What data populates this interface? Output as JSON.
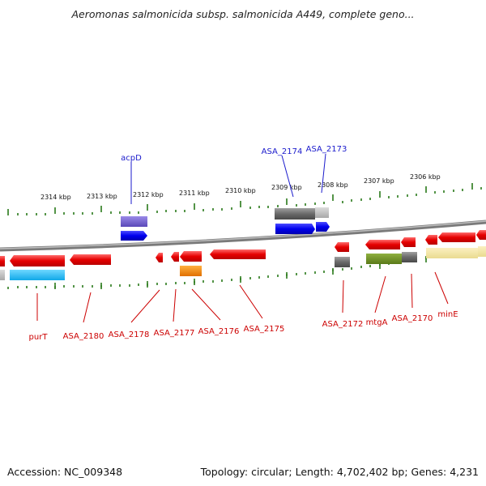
{
  "title": "Aeromonas salmonicida subsp. salmonicida A449, complete geno...",
  "accession": "Accession: NC_009348",
  "topology": "Topology: circular; Length: 4,702,402 bp; Genes: 4,231",
  "ticks": [
    "2314 kbp",
    "2313 kbp",
    "2312 kbp",
    "2311 kbp",
    "2310 kbp",
    "2309 kbp",
    "2308 kbp",
    "2307 kbp",
    "2306 kbp"
  ],
  "genes_top": [
    "acpD",
    "ASA_2174",
    "ASA_2173"
  ],
  "genes_bottom": [
    "purT",
    "ASA_2180",
    "ASA_2178",
    "ASA_2177",
    "ASA_2176",
    "ASA_2175",
    "ASA_2172",
    "mtgA",
    "ASA_2170",
    "minE"
  ],
  "colors": {
    "gene_forward": "#1010e0",
    "gene_reverse": "#e01010",
    "label_forward": "#1a1acc",
    "label_reverse": "#cc0000",
    "tick": "#2a7a1a",
    "backbone": "#8a8a8a"
  }
}
